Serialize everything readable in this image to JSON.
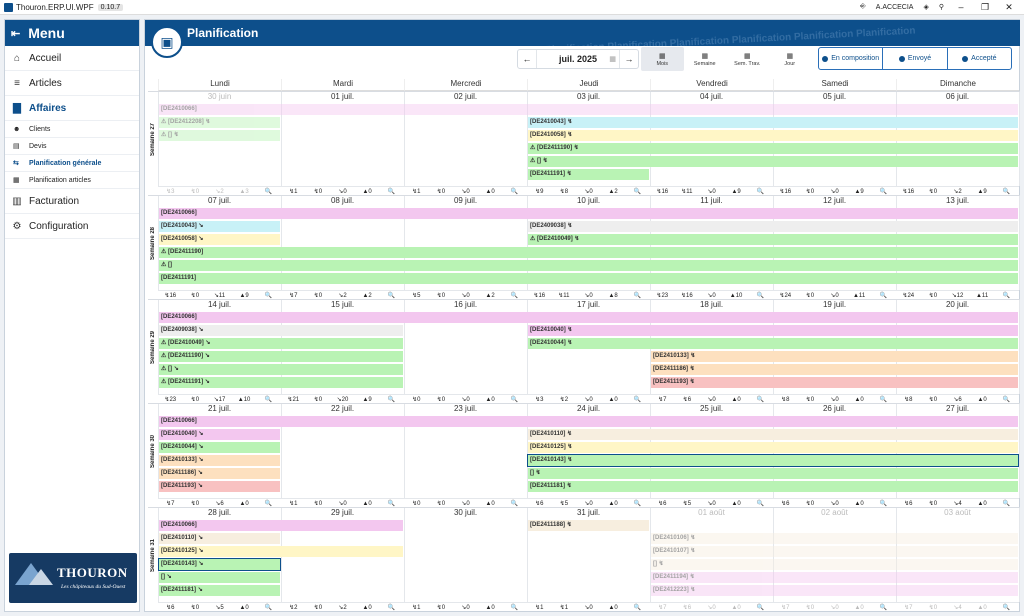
{
  "app": {
    "title": "Thouron.ERP.UI.WPF",
    "version": "0.10.7",
    "user": "A.ACCECIA"
  },
  "sidebar": {
    "title": "Menu",
    "items": [
      {
        "label": "Accueil",
        "icon": "home-icon",
        "kind": "main"
      },
      {
        "label": "Articles",
        "icon": "list-icon",
        "kind": "main"
      },
      {
        "label": "Affaires",
        "icon": "briefcase-icon",
        "kind": "main",
        "active": true
      },
      {
        "label": "Clients",
        "icon": "user-icon",
        "kind": "sub"
      },
      {
        "label": "Devis",
        "icon": "document-icon",
        "kind": "sub"
      },
      {
        "label": "Planification générale",
        "icon": "planning-icon",
        "kind": "sub",
        "active": true
      },
      {
        "label": "Planification articles",
        "icon": "calendar-icon",
        "kind": "sub"
      },
      {
        "label": "Facturation",
        "icon": "invoice-icon",
        "kind": "main"
      },
      {
        "label": "Configuration",
        "icon": "settings-icon",
        "kind": "main"
      }
    ],
    "logo": {
      "brand": "THOURON",
      "tagline": "Les châpiteaux du Sud-Ouest"
    }
  },
  "header": {
    "title": "Planification",
    "period": "juil. 2025",
    "prev": "←",
    "next": "→",
    "views": [
      "Mois",
      "Semaine",
      "Sem. Trav.",
      "Jour"
    ],
    "filters": [
      "En composition",
      "Envoyé",
      "Accepté"
    ]
  },
  "colors": {
    "pink": "#f3c7ef",
    "yellow": "#fff6c6",
    "green": "#b9f3b4",
    "cyan": "#c8f1f7",
    "orange": "#fde0bf",
    "red": "#f8c1c1",
    "grey": "#eeeeee",
    "tan": "#f7eedf"
  },
  "days": [
    "Lundi",
    "Mardi",
    "Mercredi",
    "Jeudi",
    "Vendredi",
    "Samedi",
    "Dimanche"
  ],
  "weeks": [
    {
      "label": "Semaine 27",
      "dates": [
        "30 juin",
        "01 juil.",
        "02 juil.",
        "03 juil.",
        "04 juil.",
        "05 juil.",
        "06 juil."
      ],
      "dim": [
        0
      ],
      "bars": [
        {
          "t": "[DE2410066]",
          "r": 0,
          "c": 0,
          "s": 7,
          "col": "pink",
          "dim": 1
        },
        {
          "t": "⚠ [DE2412208] ↯",
          "r": 1,
          "c": 0,
          "s": 1,
          "col": "green",
          "dim": 1
        },
        {
          "t": "⚠ [] ↯",
          "r": 2,
          "c": 0,
          "s": 1,
          "col": "green",
          "dim": 1
        },
        {
          "t": "[DE2410043] ↯",
          "r": 1,
          "c": 3,
          "s": 4,
          "col": "cyan"
        },
        {
          "t": "[DE2410058] ↯",
          "r": 2,
          "c": 3,
          "s": 4,
          "col": "yellow"
        },
        {
          "t": "⚠ [DE2411190] ↯",
          "r": 3,
          "c": 3,
          "s": 4,
          "col": "green"
        },
        {
          "t": "⚠ [] ↯",
          "r": 4,
          "c": 3,
          "s": 4,
          "col": "green"
        },
        {
          "t": "[DE2411191] ↯",
          "r": 5,
          "c": 3,
          "s": 1,
          "col": "green"
        }
      ],
      "stats": [
        "↯3 ↯0 ↘2 ▲3 🔍",
        "↯1 ↯0 ↘0 ▲0 🔍",
        "↯1 ↯0 ↘0 ▲0 🔍",
        "↯9 ↯8 ↘0 ▲2 🔍",
        "↯16 ↯11 ↘0 ▲9 🔍",
        "↯16 ↯0 ↘0 ▲9 🔍",
        "↯16 ↯0 ↘2 ▲9 🔍"
      ]
    },
    {
      "label": "Semaine 28",
      "dates": [
        "07 juil.",
        "08 juil.",
        "09 juil.",
        "10 juil.",
        "11 juil.",
        "12 juil.",
        "13 juil."
      ],
      "dim": [],
      "bars": [
        {
          "t": "[DE2410066]",
          "r": 0,
          "c": 0,
          "s": 7,
          "col": "pink"
        },
        {
          "t": "[DE2410043] ↘",
          "r": 1,
          "c": 0,
          "s": 1,
          "col": "cyan"
        },
        {
          "t": "[DE2410058] ↘",
          "r": 2,
          "c": 0,
          "s": 1,
          "col": "yellow"
        },
        {
          "t": "⚠ [DE2411190]",
          "r": 3,
          "c": 0,
          "s": 7,
          "col": "green"
        },
        {
          "t": "⚠ []",
          "r": 4,
          "c": 0,
          "s": 7,
          "col": "green"
        },
        {
          "t": "[DE2411191]",
          "r": 5,
          "c": 0,
          "s": 7,
          "col": "green"
        },
        {
          "t": "[DE2409038] ↯",
          "r": 1,
          "c": 3,
          "s": 4,
          "col": "grey"
        },
        {
          "t": "⚠ [DE2410049] ↯",
          "r": 2,
          "c": 3,
          "s": 4,
          "col": "green"
        }
      ],
      "stats": [
        "↯16 ↯0 ↘11 ▲9 🔍",
        "↯7 ↯0 ↘2 ▲2 🔍",
        "↯5 ↯0 ↘0 ▲2 🔍",
        "↯16 ↯11 ↘0 ▲8 🔍",
        "↯23 ↯16 ↘0 ▲10 🔍",
        "↯24 ↯0 ↘0 ▲11 🔍",
        "↯24 ↯0 ↘12 ▲11 🔍"
      ]
    },
    {
      "label": "Semaine 29",
      "dates": [
        "14 juil.",
        "15 juil.",
        "16 juil.",
        "17 juil.",
        "18 juil.",
        "19 juil.",
        "20 juil."
      ],
      "dim": [],
      "bars": [
        {
          "t": "[DE2410066]",
          "r": 0,
          "c": 0,
          "s": 7,
          "col": "pink"
        },
        {
          "t": "[DE2409038] ↘",
          "r": 1,
          "c": 0,
          "s": 2,
          "col": "grey"
        },
        {
          "t": "⚠ [DE2410049] ↘",
          "r": 2,
          "c": 0,
          "s": 2,
          "col": "green"
        },
        {
          "t": "⚠ [DE2411190] ↘",
          "r": 3,
          "c": 0,
          "s": 2,
          "col": "green"
        },
        {
          "t": "⚠ [] ↘",
          "r": 4,
          "c": 0,
          "s": 2,
          "col": "green"
        },
        {
          "t": "⚠ [DE2411191] ↘",
          "r": 5,
          "c": 0,
          "s": 2,
          "col": "green"
        },
        {
          "t": "[DE2410040] ↯",
          "r": 1,
          "c": 3,
          "s": 4,
          "col": "pink"
        },
        {
          "t": "[DE2410044] ↯",
          "r": 2,
          "c": 3,
          "s": 4,
          "col": "green"
        },
        {
          "t": "[DE2410133] ↯",
          "r": 3,
          "c": 4,
          "s": 3,
          "col": "orange"
        },
        {
          "t": "[DE2411186] ↯",
          "r": 4,
          "c": 4,
          "s": 3,
          "col": "orange"
        },
        {
          "t": "[DE2411193] ↯",
          "r": 5,
          "c": 4,
          "s": 3,
          "col": "red"
        }
      ],
      "stats": [
        "↯23 ↯0 ↘17 ▲10 🔍",
        "↯21 ↯0 ↘20 ▲9 🔍",
        "↯0 ↯0 ↘0 ▲0 🔍",
        "↯3 ↯2 ↘0 ▲0 🔍",
        "↯7 ↯6 ↘0 ▲0 🔍",
        "↯8 ↯0 ↘0 ▲0 🔍",
        "↯8 ↯0 ↘6 ▲0 🔍"
      ]
    },
    {
      "label": "Semaine 30",
      "dates": [
        "21 juil.",
        "22 juil.",
        "23 juil.",
        "24 juil.",
        "25 juil.",
        "26 juil.",
        "27 juil."
      ],
      "dim": [],
      "bars": [
        {
          "t": "[DE2410066]",
          "r": 0,
          "c": 0,
          "s": 7,
          "col": "pink"
        },
        {
          "t": "[DE2410040] ↘",
          "r": 1,
          "c": 0,
          "s": 1,
          "col": "pink"
        },
        {
          "t": "[DE2410044] ↘",
          "r": 2,
          "c": 0,
          "s": 1,
          "col": "green"
        },
        {
          "t": "[DE2410133] ↘",
          "r": 3,
          "c": 0,
          "s": 1,
          "col": "orange"
        },
        {
          "t": "[DE2411186] ↘",
          "r": 4,
          "c": 0,
          "s": 1,
          "col": "orange"
        },
        {
          "t": "[DE2411193] ↘",
          "r": 5,
          "c": 0,
          "s": 1,
          "col": "red"
        },
        {
          "t": "[DE2410110] ↯",
          "r": 1,
          "c": 3,
          "s": 4,
          "col": "tan"
        },
        {
          "t": "[DE2410125] ↯",
          "r": 2,
          "c": 3,
          "s": 4,
          "col": "yellow"
        },
        {
          "t": "[DE2410143] ↯",
          "r": 3,
          "c": 3,
          "s": 4,
          "col": "green",
          "sel": 1
        },
        {
          "t": "[] ↯",
          "r": 4,
          "c": 3,
          "s": 4,
          "col": "green"
        },
        {
          "t": "[DE2411181] ↯",
          "r": 5,
          "c": 3,
          "s": 4,
          "col": "green"
        }
      ],
      "stats": [
        "↯7 ↯0 ↘6 ▲0 🔍",
        "↯1 ↯0 ↘0 ▲0 🔍",
        "↯0 ↯0 ↘0 ▲0 🔍",
        "↯6 ↯5 ↘0 ▲0 🔍",
        "↯6 ↯5 ↘0 ▲0 🔍",
        "↯6 ↯0 ↘0 ▲0 🔍",
        "↯6 ↯0 ↘4 ▲0 🔍"
      ]
    },
    {
      "label": "Semaine 31",
      "dates": [
        "28 juil.",
        "29 juil.",
        "30 juil.",
        "31 juil.",
        "01 août",
        "02 août",
        "03 août"
      ],
      "dim": [
        4,
        5,
        6
      ],
      "bars": [
        {
          "t": "[DE2410066]",
          "r": 0,
          "c": 0,
          "s": 2,
          "col": "pink"
        },
        {
          "t": "[DE2410110] ↘",
          "r": 1,
          "c": 0,
          "s": 1,
          "col": "tan"
        },
        {
          "t": "[DE2410125] ↘",
          "r": 2,
          "c": 0,
          "s": 2,
          "col": "yellow"
        },
        {
          "t": "[DE2410143] ↘",
          "r": 3,
          "c": 0,
          "s": 1,
          "col": "green",
          "sel": 1
        },
        {
          "t": "[] ↘",
          "r": 4,
          "c": 0,
          "s": 1,
          "col": "green"
        },
        {
          "t": "[DE2411181] ↘",
          "r": 5,
          "c": 0,
          "s": 1,
          "col": "green"
        },
        {
          "t": "[DE2411188] ↯",
          "r": 0,
          "c": 3,
          "s": 1,
          "col": "tan"
        },
        {
          "t": "[DE2410106] ↯",
          "r": 1,
          "c": 4,
          "s": 3,
          "col": "tan",
          "dim": 1
        },
        {
          "t": "[DE2410107] ↯",
          "r": 2,
          "c": 4,
          "s": 3,
          "col": "tan",
          "dim": 1
        },
        {
          "t": "[] ↯",
          "r": 3,
          "c": 4,
          "s": 3,
          "col": "tan",
          "dim": 1
        },
        {
          "t": "[DE2411194] ↯",
          "r": 4,
          "c": 4,
          "s": 3,
          "col": "pink",
          "dim": 1
        },
        {
          "t": "[DE2412223] ↯",
          "r": 5,
          "c": 4,
          "s": 3,
          "col": "pink",
          "dim": 1
        }
      ],
      "stats": [
        "↯6 ↯0 ↘5 ▲0 🔍",
        "↯2 ↯0 ↘2 ▲0 🔍",
        "↯1 ↯0 ↘0 ▲0 🔍",
        "↯1 ↯1 ↘0 ▲0 🔍",
        "↯7 ↯6 ↘0 ▲0 🔍",
        "↯7 ↯0 ↘0 ▲0 🔍",
        "↯7 ↯0 ↘4 ▲0 🔍"
      ]
    }
  ]
}
